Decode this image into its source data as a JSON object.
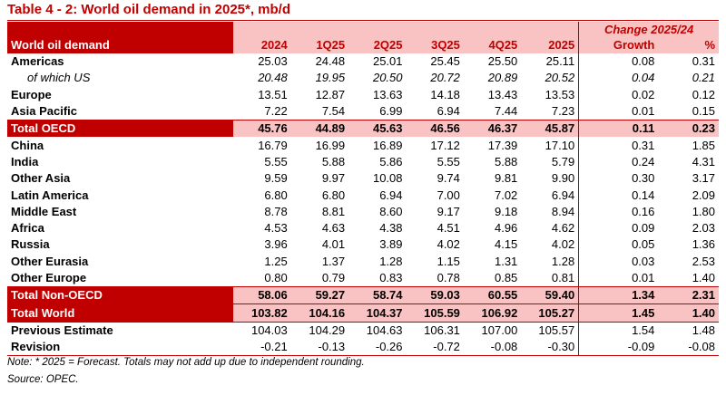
{
  "title": "Table 4 - 2: World oil demand in 2025*, mb/d",
  "header": {
    "label": "World oil demand",
    "columns": [
      "2024",
      "1Q25",
      "2Q25",
      "3Q25",
      "4Q25",
      "2025"
    ],
    "change_title": "Change 2025/24",
    "growth": "Growth",
    "percent": "%"
  },
  "rows": [
    {
      "label": "Americas",
      "values": [
        "25.03",
        "24.48",
        "25.01",
        "25.45",
        "25.50",
        "25.11"
      ],
      "growth": "0.08",
      "pct": "0.31"
    },
    {
      "label": "of which US",
      "values": [
        "20.48",
        "19.95",
        "20.50",
        "20.72",
        "20.89",
        "20.52"
      ],
      "growth": "0.04",
      "pct": "0.21"
    },
    {
      "label": "Europe",
      "values": [
        "13.51",
        "12.87",
        "13.63",
        "14.18",
        "13.43",
        "13.53"
      ],
      "growth": "0.02",
      "pct": "0.12"
    },
    {
      "label": "Asia Pacific",
      "values": [
        "7.22",
        "7.54",
        "6.99",
        "6.94",
        "7.44",
        "7.23"
      ],
      "growth": "0.01",
      "pct": "0.15"
    },
    {
      "label": "Total OECD",
      "values": [
        "45.76",
        "44.89",
        "45.63",
        "46.56",
        "46.37",
        "45.87"
      ],
      "growth": "0.11",
      "pct": "0.23"
    },
    {
      "label": "China",
      "values": [
        "16.79",
        "16.99",
        "16.89",
        "17.12",
        "17.39",
        "17.10"
      ],
      "growth": "0.31",
      "pct": "1.85"
    },
    {
      "label": "India",
      "values": [
        "5.55",
        "5.88",
        "5.86",
        "5.55",
        "5.88",
        "5.79"
      ],
      "growth": "0.24",
      "pct": "4.31"
    },
    {
      "label": "Other Asia",
      "values": [
        "9.59",
        "9.97",
        "10.08",
        "9.74",
        "9.81",
        "9.90"
      ],
      "growth": "0.30",
      "pct": "3.17"
    },
    {
      "label": "Latin America",
      "values": [
        "6.80",
        "6.80",
        "6.94",
        "7.00",
        "7.02",
        "6.94"
      ],
      "growth": "0.14",
      "pct": "2.09"
    },
    {
      "label": "Middle East",
      "values": [
        "8.78",
        "8.81",
        "8.60",
        "9.17",
        "9.18",
        "8.94"
      ],
      "growth": "0.16",
      "pct": "1.80"
    },
    {
      "label": "Africa",
      "values": [
        "4.53",
        "4.63",
        "4.38",
        "4.51",
        "4.96",
        "4.62"
      ],
      "growth": "0.09",
      "pct": "2.03"
    },
    {
      "label": "Russia",
      "values": [
        "3.96",
        "4.01",
        "3.89",
        "4.02",
        "4.15",
        "4.02"
      ],
      "growth": "0.05",
      "pct": "1.36"
    },
    {
      "label": "Other Eurasia",
      "values": [
        "1.25",
        "1.37",
        "1.28",
        "1.15",
        "1.31",
        "1.28"
      ],
      "growth": "0.03",
      "pct": "2.53"
    },
    {
      "label": "Other Europe",
      "values": [
        "0.80",
        "0.79",
        "0.83",
        "0.78",
        "0.85",
        "0.81"
      ],
      "growth": "0.01",
      "pct": "1.40"
    },
    {
      "label": "Total Non-OECD",
      "values": [
        "58.06",
        "59.27",
        "58.74",
        "59.03",
        "60.55",
        "59.40"
      ],
      "growth": "1.34",
      "pct": "2.31"
    },
    {
      "label": "Total World",
      "values": [
        "103.82",
        "104.16",
        "104.37",
        "105.59",
        "106.92",
        "105.27"
      ],
      "growth": "1.45",
      "pct": "1.40"
    },
    {
      "label": "Previous Estimate",
      "values": [
        "104.03",
        "104.29",
        "104.63",
        "106.31",
        "107.00",
        "105.57"
      ],
      "growth": "1.54",
      "pct": "1.48"
    },
    {
      "label": "Revision",
      "values": [
        "-0.21",
        "-0.13",
        "-0.26",
        "-0.72",
        "-0.08",
        "-0.30"
      ],
      "growth": "-0.09",
      "pct": "-0.08"
    }
  ],
  "note": "Note: * 2025 = Forecast. Totals may not add up due to independent rounding.",
  "source": "Source: OPEC."
}
